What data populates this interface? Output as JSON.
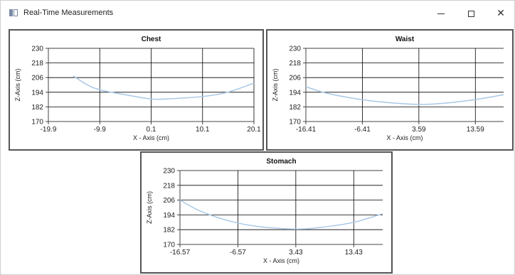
{
  "window": {
    "title": "Real-Time Measurements",
    "controls": {
      "minimize": "–",
      "maximize": "□",
      "close": "✕"
    }
  },
  "colors": {
    "line": "#a9c8e6",
    "grid": "#000000",
    "axis": "#444444",
    "panel_border": "#555555"
  },
  "chart_data": [
    {
      "type": "line",
      "title": "Chest",
      "xlabel": "X - Axis (cm)",
      "ylabel": "Z-Axis (cm)",
      "xlim": [
        -19.9,
        20.1
      ],
      "ylim": [
        170,
        230
      ],
      "xticks": [
        -19.9,
        -9.9,
        0.1,
        10.1,
        20.1
      ],
      "xtick_labels": [
        "-19.9",
        "-9.9",
        "0.1",
        "10.1",
        "20.1"
      ],
      "yticks": [
        170,
        182,
        194,
        206,
        218,
        230
      ],
      "grid": true,
      "x": [
        -15.1,
        -12.5,
        -9.9,
        -5.0,
        0.1,
        3.0,
        10.1,
        15.0,
        20.1
      ],
      "y": [
        207.5,
        200.5,
        196.0,
        192.0,
        188.5,
        188.5,
        190.5,
        194.0,
        201.5
      ]
    },
    {
      "type": "line",
      "title": "Waist",
      "xlabel": "X - Axis (cm)",
      "ylabel": "Z-Axis (cm)",
      "xlim": [
        -16.41,
        18.59
      ],
      "ylim": [
        170,
        230
      ],
      "xticks": [
        -16.41,
        -6.41,
        3.59,
        13.59
      ],
      "xtick_labels": [
        "-16.41",
        "-6.41",
        "3.59",
        "13.59"
      ],
      "yticks": [
        170,
        182,
        194,
        206,
        218,
        230
      ],
      "grid": true,
      "x": [
        -16.41,
        -13.0,
        -8.0,
        -3.0,
        3.59,
        8.0,
        13.59,
        18.59
      ],
      "y": [
        198.5,
        193.5,
        189.0,
        186.0,
        184.0,
        185.0,
        188.0,
        192.0
      ]
    },
    {
      "type": "line",
      "title": "Stomach",
      "xlabel": "X - Axis (cm)",
      "ylabel": "Z-Axis (cm)",
      "xlim": [
        -16.57,
        18.43
      ],
      "ylim": [
        170,
        230
      ],
      "xticks": [
        -16.57,
        -6.57,
        3.43,
        13.43
      ],
      "xtick_labels": [
        "-16.57",
        "-6.57",
        "3.43",
        "13.43"
      ],
      "yticks": [
        170,
        182,
        194,
        206,
        218,
        230
      ],
      "grid": true,
      "x": [
        -16.57,
        -13.0,
        -8.0,
        -3.0,
        3.43,
        8.0,
        13.43,
        18.43
      ],
      "y": [
        206.0,
        197.0,
        189.0,
        184.5,
        182.5,
        184.0,
        188.0,
        195.0
      ]
    }
  ]
}
